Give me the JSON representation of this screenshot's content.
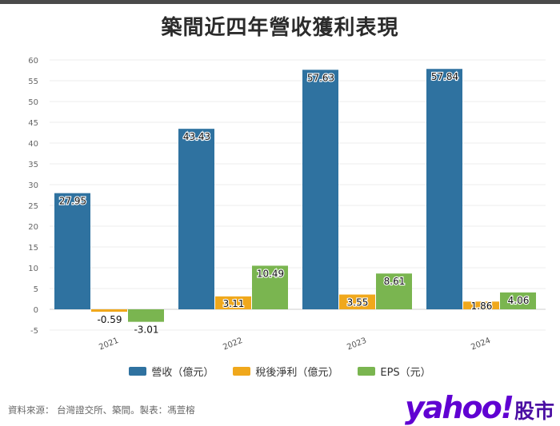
{
  "header": {
    "title": "築間近四年營收獲利表現"
  },
  "chart_data": {
    "type": "bar",
    "title": "築間近四年營收獲利表現",
    "categories": [
      "2021",
      "2022",
      "2023",
      "2024"
    ],
    "series": [
      {
        "name": "營收（億元）",
        "color": "#2f72a0",
        "values": [
          27.95,
          43.43,
          57.63,
          57.84
        ],
        "labels": [
          "27.95",
          "43.43",
          "57.63",
          "57.84"
        ]
      },
      {
        "name": "稅後淨利（億元）",
        "color": "#f0a81c",
        "values": [
          -0.59,
          3.11,
          3.55,
          1.86
        ],
        "labels": [
          "-0.59",
          "3.11",
          "3.55",
          "1.86"
        ]
      },
      {
        "name": "EPS（元）",
        "color": "#7ab550",
        "values": [
          -3.01,
          10.49,
          8.61,
          4.06
        ],
        "labels": [
          "-3.01",
          "10.49",
          "8.61",
          "4.06"
        ]
      }
    ],
    "yticks": [
      "60",
      "55",
      "50",
      "45",
      "40",
      "35",
      "30",
      "25",
      "20",
      "15",
      "10",
      "5",
      "0",
      "-5"
    ],
    "ylim": [
      -5,
      60
    ],
    "grid": true,
    "legend": "bottom-center"
  },
  "footer": {
    "source": "資料來源： 台灣證交所、築間。製表：馮萱榕",
    "brand_logo": "yahoo!",
    "brand_text": "股市"
  },
  "colors": {
    "revenue": "#2f72a0",
    "net_income": "#f0a81c",
    "eps": "#7ab550"
  }
}
